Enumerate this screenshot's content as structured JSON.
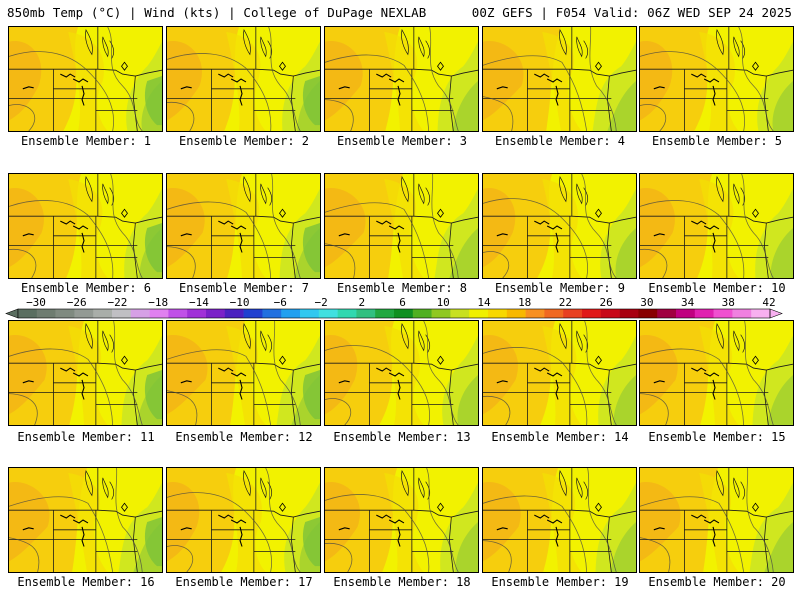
{
  "header": {
    "left": "850mb Temp (°C) | Wind (kts) | College of DuPage NEXLAB",
    "right": "00Z GEFS | F054 Valid: 06Z WED SEP 24 2025"
  },
  "members": [
    {
      "label": "Ensemble Member: 1",
      "icon": "temperature-map"
    },
    {
      "label": "Ensemble Member: 2",
      "icon": "temperature-map"
    },
    {
      "label": "Ensemble Member: 3",
      "icon": "temperature-map"
    },
    {
      "label": "Ensemble Member: 4",
      "icon": "temperature-map"
    },
    {
      "label": "Ensemble Member: 5",
      "icon": "temperature-map"
    },
    {
      "label": "Ensemble Member: 6",
      "icon": "temperature-map"
    },
    {
      "label": "Ensemble Member: 7",
      "icon": "temperature-map"
    },
    {
      "label": "Ensemble Member: 8",
      "icon": "temperature-map"
    },
    {
      "label": "Ensemble Member: 9",
      "icon": "temperature-map"
    },
    {
      "label": "Ensemble Member: 10",
      "icon": "temperature-map"
    },
    {
      "label": "Ensemble Member: 11",
      "icon": "temperature-map"
    },
    {
      "label": "Ensemble Member: 12",
      "icon": "temperature-map"
    },
    {
      "label": "Ensemble Member: 13",
      "icon": "temperature-map"
    },
    {
      "label": "Ensemble Member: 14",
      "icon": "temperature-map"
    },
    {
      "label": "Ensemble Member: 15",
      "icon": "temperature-map"
    },
    {
      "label": "Ensemble Member: 16",
      "icon": "temperature-map"
    },
    {
      "label": "Ensemble Member: 17",
      "icon": "temperature-map"
    },
    {
      "label": "Ensemble Member: 18",
      "icon": "temperature-map"
    },
    {
      "label": "Ensemble Member: 19",
      "icon": "temperature-map"
    },
    {
      "label": "Ensemble Member: 20",
      "icon": "temperature-map"
    }
  ],
  "colorbar": {
    "tick_labels": [
      "-30",
      "-26",
      "-22",
      "-18",
      "-14",
      "-10",
      "-6",
      "-2",
      "2",
      "6",
      "10",
      "14",
      "18",
      "22",
      "26",
      "30",
      "34",
      "38",
      "42"
    ],
    "colors": [
      "#5a6e60",
      "#6e7c70",
      "#7f8a80",
      "#939a94",
      "#a9aea9",
      "#c0bfc3",
      "#d6a0e6",
      "#e080f0",
      "#c050e8",
      "#a030d8",
      "#7a20c8",
      "#4a20c0",
      "#2040d0",
      "#2070e0",
      "#20a0f0",
      "#30c8f0",
      "#40e0e0",
      "#30d8b0",
      "#30c080",
      "#20a840",
      "#109020",
      "#50b020",
      "#90c820",
      "#c8e020",
      "#f0f000",
      "#f8d800",
      "#f8b800",
      "#f89020",
      "#f06820",
      "#e84020",
      "#e01818",
      "#c80818",
      "#a80010",
      "#880000",
      "#a00040",
      "#c00080",
      "#e020b0",
      "#f050d0",
      "#f080e0",
      "#f8b0f0"
    ],
    "fill_colors": [
      "#f2f200",
      "#f4df05",
      "#f7c80f",
      "#f4b018",
      "#cce622",
      "#a0d030",
      "#7cc23a"
    ]
  }
}
